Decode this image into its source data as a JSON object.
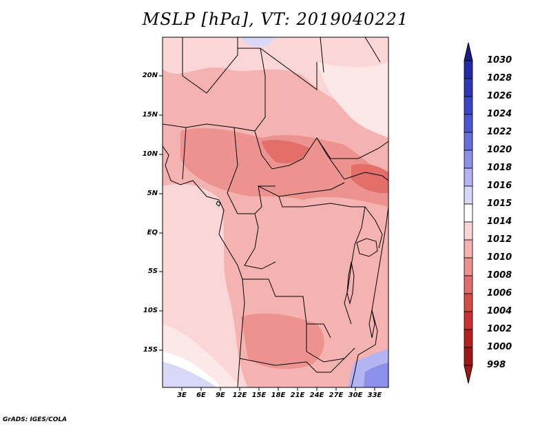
{
  "title": "MSLP [hPa], VT: 2019040221",
  "variable": "MSLP",
  "units": "hPa",
  "valid_time": "2019040221",
  "lat_labels": [
    "20N",
    "15N",
    "10N",
    "5N",
    "EQ",
    "5S",
    "10S",
    "15S"
  ],
  "lon_labels": [
    "3E",
    "6E",
    "9E",
    "12E",
    "15E",
    "18E",
    "21E",
    "24E",
    "27E",
    "30E",
    "33E"
  ],
  "colorbar": {
    "labels": [
      "1030",
      "1028",
      "1026",
      "1024",
      "1022",
      "1020",
      "1018",
      "1016",
      "1015",
      "1014",
      "1012",
      "1010",
      "1008",
      "1006",
      "1004",
      "1002",
      "1000",
      "998"
    ],
    "colors": [
      "#1c1a8c",
      "#262aa6",
      "#3237b6",
      "#3b46c6",
      "#4a56d2",
      "#6670dc",
      "#8d90e8",
      "#b3b4f1",
      "#d7d8f8",
      "#ffffff",
      "#fbd6d6",
      "#f4b2b0",
      "#ec9390",
      "#e26e6a",
      "#d64b45",
      "#c93231",
      "#b41f1f",
      "#9e1616"
    ]
  },
  "credit": "GrADS: IGES/COLA"
}
